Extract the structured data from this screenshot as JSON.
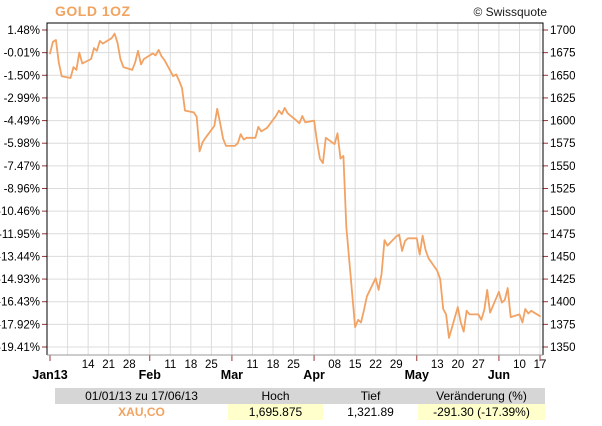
{
  "header": {
    "title": "GOLD 1OZ",
    "copyright": "© Swissquote"
  },
  "colors": {
    "accent": "#F1A360",
    "line": "#F2A263",
    "tick": "#993333",
    "grid": "#DCDCDC",
    "border": "#000000",
    "axis_bottom": "#999999",
    "label": "#000000",
    "table_header_bg": "#D6D6D6",
    "highlight_bg": "#FFFFCC"
  },
  "chart_data": {
    "type": "line",
    "title": "GOLD 1OZ",
    "series_name": "XAU,CO",
    "x_unit": "days since 01/01/13",
    "x_range_days": [
      0,
      167
    ],
    "ylim": [
      1350,
      1700
    ],
    "grid": true,
    "legend_position": "none",
    "left_axis_unit": "%",
    "levels": [
      {
        "pct": "1.48%",
        "price": 1700
      },
      {
        "pct": "-0.01%",
        "price": 1675
      },
      {
        "pct": "-1.50%",
        "price": 1650
      },
      {
        "pct": "-2.99%",
        "price": 1625
      },
      {
        "pct": "-4.49%",
        "price": 1600
      },
      {
        "pct": "-5.98%",
        "price": 1575
      },
      {
        "pct": "-7.47%",
        "price": 1550
      },
      {
        "pct": "-8.96%",
        "price": 1525
      },
      {
        "pct": "-10.46%",
        "price": 1500
      },
      {
        "pct": "-11.95%",
        "price": 1475
      },
      {
        "pct": "-13.44%",
        "price": 1450
      },
      {
        "pct": "-14.93%",
        "price": 1425
      },
      {
        "pct": "-16.43%",
        "price": 1400
      },
      {
        "pct": "-17.92%",
        "price": 1375
      },
      {
        "pct": "-19.41%",
        "price": 1350
      }
    ],
    "x_labels": [
      {
        "day": 0,
        "text": "Jan13",
        "month": true
      },
      {
        "day": 13,
        "text": "14"
      },
      {
        "day": 20,
        "text": "21"
      },
      {
        "day": 27,
        "text": "28"
      },
      {
        "day": 34,
        "text": "Feb",
        "month": true
      },
      {
        "day": 41,
        "text": "11"
      },
      {
        "day": 48,
        "text": "18"
      },
      {
        "day": 55,
        "text": "25"
      },
      {
        "day": 62,
        "text": "Mar",
        "month": true
      },
      {
        "day": 69,
        "text": "11"
      },
      {
        "day": 76,
        "text": "18"
      },
      {
        "day": 83,
        "text": "25"
      },
      {
        "day": 90,
        "text": "Apr",
        "month": true
      },
      {
        "day": 97,
        "text": "08"
      },
      {
        "day": 104,
        "text": "15"
      },
      {
        "day": 111,
        "text": "22"
      },
      {
        "day": 118,
        "text": "29"
      },
      {
        "day": 125,
        "text": "May",
        "month": true
      },
      {
        "day": 132,
        "text": "13"
      },
      {
        "day": 139,
        "text": "20"
      },
      {
        "day": 146,
        "text": "27"
      },
      {
        "day": 153,
        "text": "Jun",
        "month": true
      },
      {
        "day": 160,
        "text": "10"
      },
      {
        "day": 167,
        "text": "17"
      }
    ],
    "bottom_tick_days": [
      0,
      34,
      62,
      90,
      125,
      153,
      167
    ],
    "points": [
      [
        0,
        1674
      ],
      [
        1,
        1687
      ],
      [
        2,
        1689
      ],
      [
        3,
        1664
      ],
      [
        4,
        1649
      ],
      [
        7,
        1647
      ],
      [
        8,
        1659
      ],
      [
        9,
        1656
      ],
      [
        10,
        1675
      ],
      [
        11,
        1663
      ],
      [
        14,
        1668
      ],
      [
        15,
        1680
      ],
      [
        16,
        1677
      ],
      [
        17,
        1688
      ],
      [
        18,
        1685
      ],
      [
        21,
        1691
      ],
      [
        22,
        1696
      ],
      [
        23,
        1686
      ],
      [
        24,
        1668
      ],
      [
        25,
        1659
      ],
      [
        28,
        1656
      ],
      [
        29,
        1664
      ],
      [
        30,
        1677
      ],
      [
        31,
        1662
      ],
      [
        32,
        1668
      ],
      [
        35,
        1674
      ],
      [
        36,
        1672
      ],
      [
        37,
        1678
      ],
      [
        38,
        1671
      ],
      [
        39,
        1667
      ],
      [
        42,
        1649
      ],
      [
        43,
        1651
      ],
      [
        44,
        1644
      ],
      [
        45,
        1636
      ],
      [
        46,
        1611
      ],
      [
        49,
        1609
      ],
      [
        50,
        1604
      ],
      [
        51,
        1566
      ],
      [
        52,
        1576
      ],
      [
        53,
        1581
      ],
      [
        56,
        1594
      ],
      [
        57,
        1613
      ],
      [
        58,
        1597
      ],
      [
        59,
        1580
      ],
      [
        60,
        1572
      ],
      [
        63,
        1572
      ],
      [
        64,
        1575
      ],
      [
        65,
        1585
      ],
      [
        66,
        1579
      ],
      [
        67,
        1581
      ],
      [
        70,
        1581
      ],
      [
        71,
        1593
      ],
      [
        72,
        1588
      ],
      [
        73,
        1590
      ],
      [
        74,
        1592
      ],
      [
        77,
        1605
      ],
      [
        78,
        1611
      ],
      [
        79,
        1607
      ],
      [
        80,
        1614
      ],
      [
        81,
        1608
      ],
      [
        84,
        1600
      ],
      [
        85,
        1597
      ],
      [
        86,
        1605
      ],
      [
        87,
        1598
      ],
      [
        90,
        1600
      ],
      [
        91,
        1577
      ],
      [
        92,
        1558
      ],
      [
        93,
        1553
      ],
      [
        94,
        1581
      ],
      [
        97,
        1574
      ],
      [
        98,
        1586
      ],
      [
        99,
        1558
      ],
      [
        100,
        1561
      ],
      [
        101,
        1483
      ],
      [
        104,
        1372
      ],
      [
        105,
        1380
      ],
      [
        106,
        1377
      ],
      [
        107,
        1391
      ],
      [
        108,
        1406
      ],
      [
        111,
        1426
      ],
      [
        112,
        1413
      ],
      [
        113,
        1431
      ],
      [
        114,
        1468
      ],
      [
        115,
        1462
      ],
      [
        118,
        1472
      ],
      [
        119,
        1474
      ],
      [
        120,
        1456
      ],
      [
        121,
        1467
      ],
      [
        122,
        1470
      ],
      [
        125,
        1470
      ],
      [
        126,
        1452
      ],
      [
        127,
        1473
      ],
      [
        128,
        1457
      ],
      [
        129,
        1448
      ],
      [
        132,
        1434
      ],
      [
        133,
        1425
      ],
      [
        134,
        1392
      ],
      [
        135,
        1386
      ],
      [
        136,
        1360
      ],
      [
        139,
        1394
      ],
      [
        140,
        1377
      ],
      [
        141,
        1367
      ],
      [
        142,
        1390
      ],
      [
        143,
        1386
      ],
      [
        146,
        1386
      ],
      [
        147,
        1380
      ],
      [
        148,
        1391
      ],
      [
        149,
        1413
      ],
      [
        150,
        1388
      ],
      [
        153,
        1411
      ],
      [
        154,
        1399
      ],
      [
        155,
        1402
      ],
      [
        156,
        1415
      ],
      [
        157,
        1383
      ],
      [
        160,
        1386
      ],
      [
        161,
        1377
      ],
      [
        162,
        1392
      ],
      [
        163,
        1387
      ],
      [
        164,
        1390
      ],
      [
        167,
        1384
      ]
    ]
  },
  "summary_table": {
    "period": "01/01/13 zu 17/06/13",
    "high_label": "Hoch",
    "low_label": "Tief",
    "change_label": "Veränderung (%)",
    "symbol": "XAU,CO",
    "high": "1,695.875",
    "low": "1,321.89",
    "change": "-291.30 (-17.39%)"
  }
}
